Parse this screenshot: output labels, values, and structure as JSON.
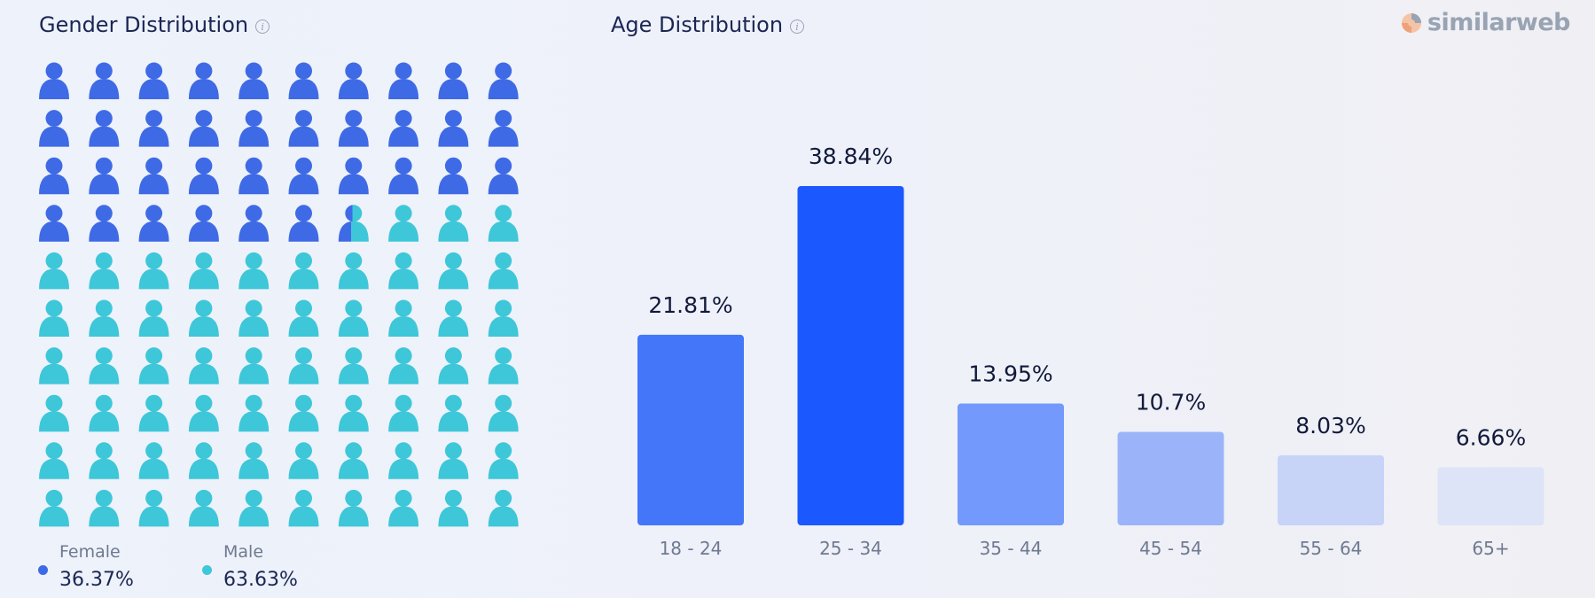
{
  "gender": {
    "title": "Gender Distribution",
    "info_icon": "info-icon",
    "legend": [
      {
        "name": "Female",
        "value": "36.37%",
        "color": "#3f6ae6"
      },
      {
        "name": "Male",
        "value": "63.63%",
        "color": "#3ec7d8"
      }
    ]
  },
  "age": {
    "title": "Age Distribution",
    "info_icon": "info-icon"
  },
  "logo": {
    "text": "similarweb",
    "icon": "similarweb-logo-icon"
  },
  "chart_data": [
    {
      "type": "pictogram",
      "title": "Gender Distribution",
      "total_icons": 100,
      "columns": 10,
      "series": [
        {
          "name": "Female",
          "value": 36.37,
          "label": "36.37%",
          "color": "#3f6ae6"
        },
        {
          "name": "Male",
          "value": 63.63,
          "label": "63.63%",
          "color": "#3ec7d8"
        }
      ]
    },
    {
      "type": "bar",
      "title": "Age Distribution",
      "categories": [
        "18 - 24",
        "25 - 34",
        "35 - 44",
        "45 - 54",
        "55 - 64",
        "65+"
      ],
      "values": [
        21.81,
        38.84,
        13.95,
        10.7,
        8.03,
        6.66
      ],
      "value_labels": [
        "21.81%",
        "38.84%",
        "13.95%",
        "10.7%",
        "8.03%",
        "6.66%"
      ],
      "colors": [
        "#4476fa",
        "#1b59fe",
        "#7299fb",
        "#9bb4f9",
        "#c7d3f7",
        "#dee4f7"
      ],
      "ylim": [
        0,
        38.84
      ],
      "grid": false
    }
  ]
}
